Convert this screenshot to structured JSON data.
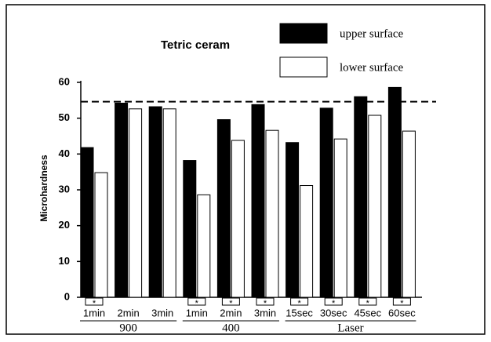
{
  "chart_data": {
    "type": "bar",
    "title": "Tetric   ceram",
    "y_label": "Microhardness",
    "categories": [
      "1min",
      "2min",
      "3min",
      "1min",
      "2min",
      "3min",
      "15sec",
      "30sec",
      "45sec",
      "60sec"
    ],
    "groups": [
      {
        "name": "900",
        "span": [
          0,
          2
        ]
      },
      {
        "name": "400",
        "span": [
          3,
          5
        ]
      },
      {
        "name": "Laser",
        "span": [
          6,
          9
        ]
      }
    ],
    "series": [
      {
        "name": "upper surface",
        "color": "#000000",
        "values": [
          41.8,
          54.2,
          53.2,
          38.2,
          49.6,
          53.8,
          43.2,
          52.8,
          56,
          58.6
        ]
      },
      {
        "name": "lower surface",
        "color": "#ffffff",
        "values": [
          34.8,
          52.6,
          52.6,
          28.6,
          43.8,
          46.6,
          31.2,
          44.2,
          50.8,
          46.4
        ]
      }
    ],
    "annotations": [
      "*",
      null,
      null,
      "*",
      "*",
      "*",
      "*",
      "*",
      "*",
      "*"
    ],
    "reference_line": 54.6,
    "ylim": [
      0,
      60
    ],
    "yticks": [
      0,
      10,
      20,
      30,
      40,
      50,
      60
    ],
    "grid": false
  }
}
